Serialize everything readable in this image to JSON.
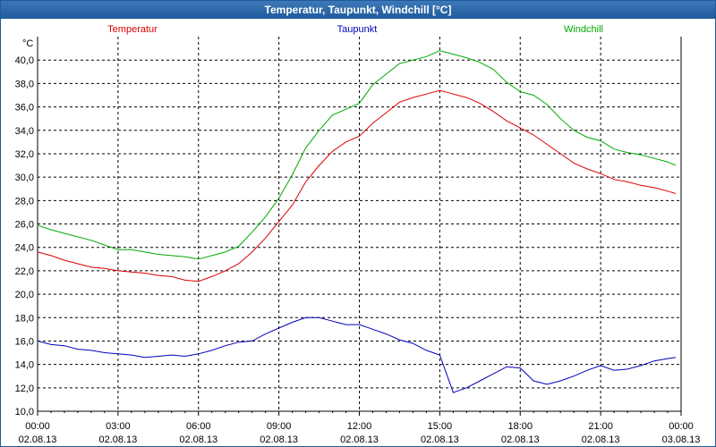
{
  "window": {
    "title": "Temperatur, Taupunkt, Windchill [°C]"
  },
  "colors": {
    "temperatur": "#dd0000",
    "taupunkt": "#0000bb",
    "windchill": "#00aa00",
    "title_bar": "#2a63a6"
  },
  "chart_data": {
    "type": "line",
    "title": "Temperatur, Taupunkt, Windchill [°C]",
    "ylabel": "°C",
    "ylim": [
      10,
      42
    ],
    "yticks": [
      "10,0",
      "12,0",
      "14,0",
      "16,0",
      "18,0",
      "20,0",
      "22,0",
      "24,0",
      "26,0",
      "28,0",
      "30,0",
      "32,0",
      "34,0",
      "36,0",
      "38,0",
      "40,0"
    ],
    "xlim": [
      0,
      24
    ],
    "xticks": [
      {
        "time": "00:00",
        "date": "02.08.13"
      },
      {
        "time": "03:00",
        "date": "02.08.13"
      },
      {
        "time": "06:00",
        "date": "02.08.13"
      },
      {
        "time": "09:00",
        "date": "02.08.13"
      },
      {
        "time": "12:00",
        "date": "02.08.13"
      },
      {
        "time": "15:00",
        "date": "02.08.13"
      },
      {
        "time": "18:00",
        "date": "02.08.13"
      },
      {
        "time": "21:00",
        "date": "02.08.13"
      },
      {
        "time": "00:00",
        "date": "03.08.13"
      }
    ],
    "grid": true,
    "x": [
      0,
      0.5,
      1,
      1.5,
      2,
      2.5,
      3,
      3.5,
      4,
      4.5,
      5,
      5.5,
      6,
      6.5,
      7,
      7.5,
      8,
      8.5,
      9,
      9.5,
      10,
      10.5,
      11,
      11.5,
      12,
      12.5,
      13,
      13.5,
      14,
      14.5,
      15,
      15.5,
      16,
      16.5,
      17,
      17.5,
      18,
      18.5,
      19,
      19.5,
      20,
      20.5,
      21,
      21.5,
      22,
      22.5,
      23,
      23.5,
      23.8
    ],
    "series": [
      {
        "name": "Temperatur",
        "color": "#dd0000",
        "values": [
          23.6,
          23.3,
          22.9,
          22.6,
          22.3,
          22.2,
          22.0,
          21.9,
          21.8,
          21.6,
          21.5,
          21.2,
          21.1,
          21.5,
          22.0,
          22.6,
          23.6,
          24.8,
          26.2,
          27.6,
          29.6,
          31.0,
          32.2,
          33.0,
          33.5,
          34.6,
          35.5,
          36.4,
          36.8,
          37.1,
          37.4,
          37.1,
          36.8,
          36.3,
          35.6,
          34.8,
          34.2,
          33.6,
          32.8,
          32.0,
          31.2,
          30.7,
          30.3,
          29.8,
          29.6,
          29.3,
          29.1,
          28.8,
          28.6
        ]
      },
      {
        "name": "Taupunkt",
        "color": "#0000bb",
        "values": [
          16.0,
          15.7,
          15.6,
          15.3,
          15.2,
          15.0,
          14.9,
          14.8,
          14.6,
          14.7,
          14.8,
          14.7,
          14.9,
          15.2,
          15.6,
          15.9,
          16.0,
          16.6,
          17.1,
          17.6,
          18.0,
          18.0,
          17.7,
          17.4,
          17.4,
          17.0,
          16.6,
          16.1,
          15.8,
          15.2,
          14.8,
          11.6,
          12.0,
          12.6,
          13.2,
          13.8,
          13.7,
          12.6,
          12.3,
          12.6,
          13.0,
          13.5,
          13.9,
          13.5,
          13.6,
          13.9,
          14.3,
          14.5,
          14.6
        ]
      },
      {
        "name": "Windchill",
        "color": "#00aa00",
        "values": [
          25.9,
          25.5,
          25.2,
          24.9,
          24.6,
          24.2,
          23.8,
          23.8,
          23.6,
          23.4,
          23.3,
          23.2,
          23.0,
          23.3,
          23.6,
          24.1,
          25.3,
          26.6,
          28.2,
          30.2,
          32.5,
          34.0,
          35.3,
          35.8,
          36.3,
          37.9,
          38.8,
          39.7,
          40.0,
          40.3,
          40.8,
          40.5,
          40.2,
          39.8,
          39.2,
          38.1,
          37.3,
          37.0,
          36.2,
          35.0,
          34.0,
          33.4,
          33.1,
          32.4,
          32.1,
          31.9,
          31.6,
          31.3,
          31.0
        ]
      }
    ]
  }
}
